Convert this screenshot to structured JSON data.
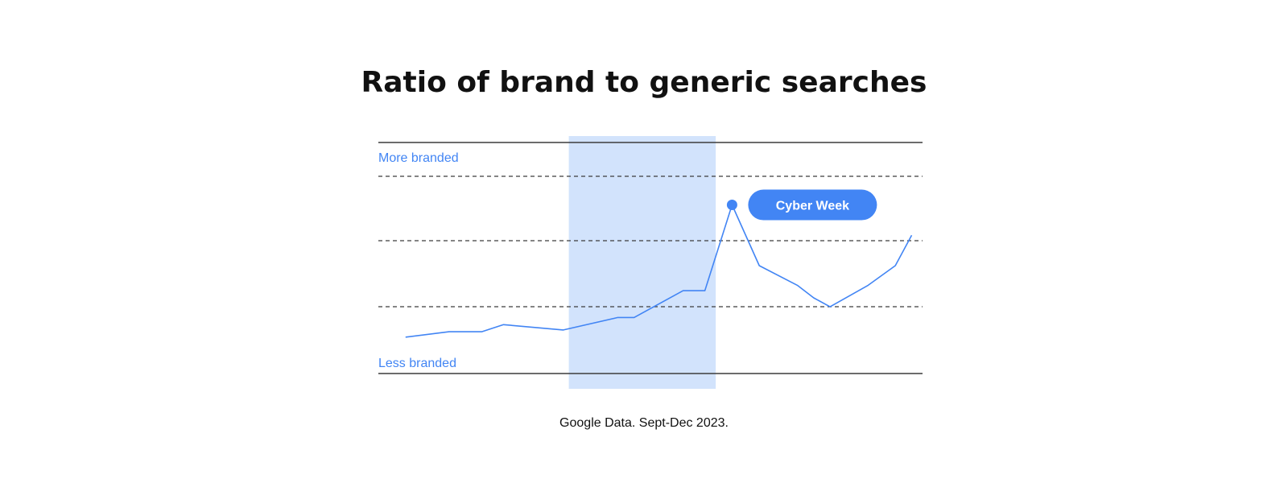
{
  "title": "Ratio of brand to generic searches",
  "caption": "Google Data. Sept-Dec 2023.",
  "colors": {
    "line": "#4285F4",
    "highlight": "#D2E3FC",
    "badge": "#4285F4",
    "text": "#111111"
  },
  "chart_data": {
    "type": "line",
    "title": "Ratio of brand to generic searches",
    "ylabel_top": "More branded",
    "ylabel_bottom": "Less branded",
    "grid": true,
    "ylim": [
      0,
      1
    ],
    "highlight_range": [
      0.35,
      0.62
    ],
    "series": [
      {
        "x": [
          0.05,
          0.13,
          0.19,
          0.23,
          0.34,
          0.44,
          0.47,
          0.56,
          0.6,
          0.65,
          0.7,
          0.77,
          0.8,
          0.83,
          0.9,
          0.95,
          0.98
        ],
        "values": [
          0.1,
          0.13,
          0.13,
          0.17,
          0.14,
          0.21,
          0.21,
          0.36,
          0.36,
          0.84,
          0.5,
          0.39,
          0.32,
          0.27,
          0.39,
          0.5,
          0.67
        ]
      }
    ],
    "annotation": {
      "label": "Cyber Week",
      "point_index": 9
    }
  }
}
